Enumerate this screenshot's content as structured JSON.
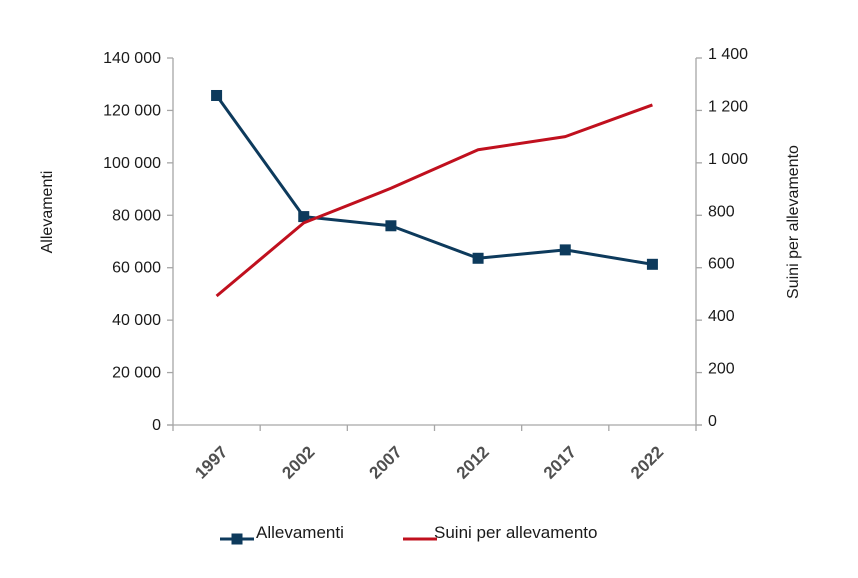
{
  "chart_data": {
    "type": "line",
    "title": "",
    "categories": [
      "1997",
      "2002",
      "2007",
      "2012",
      "2017",
      "2022"
    ],
    "series": [
      {
        "name": "Allevamenti",
        "axis": "left",
        "color": "#0d3a5c",
        "marker": "square",
        "values": [
          125700,
          79500,
          76000,
          63600,
          66800,
          61300
        ]
      },
      {
        "name": "Suini per allevamento",
        "axis": "right",
        "color": "#c0101e",
        "marker": "none",
        "values": [
          492,
          771,
          903,
          1050,
          1100,
          1221
        ]
      }
    ],
    "left_axis": {
      "label": "Allevamenti",
      "ylim": [
        0,
        140000
      ],
      "ticks": [
        0,
        20000,
        40000,
        60000,
        80000,
        100000,
        120000,
        140000
      ],
      "tick_labels": [
        "0",
        "20 000",
        "40 000",
        "60 000",
        "80 000",
        "100 000",
        "120 000",
        "140 000"
      ]
    },
    "right_axis": {
      "label": "Suini per allevamento",
      "ylim": [
        0,
        1400
      ],
      "ticks": [
        0,
        200,
        400,
        600,
        800,
        1000,
        1200,
        1400
      ],
      "tick_labels": [
        "0",
        "200",
        "400",
        "600",
        "800",
        "1 000",
        "1 200",
        "1 400"
      ]
    },
    "xlabel": "",
    "grid": false,
    "legend_position": "bottom",
    "axis_color": "#a6a6a6"
  }
}
